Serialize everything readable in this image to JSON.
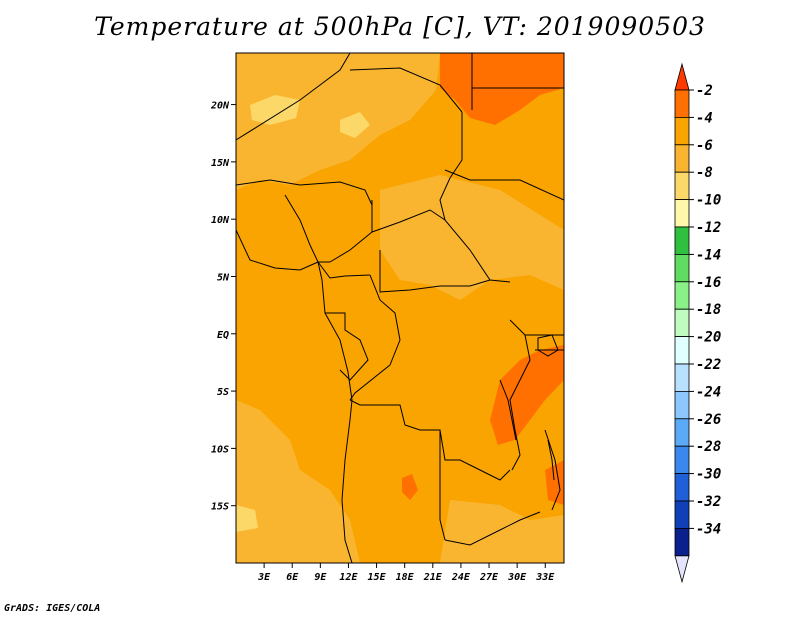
{
  "title": "Temperature at 500hPa [C], VT: 2019090503",
  "credit": "GrADS: IGES/COLA",
  "map": {
    "lon_range": [
      0,
      35
    ],
    "lat_range": [
      -20,
      24.5
    ],
    "lon_ticks": [
      {
        "value": 3,
        "label": "3E"
      },
      {
        "value": 6,
        "label": "6E"
      },
      {
        "value": 9,
        "label": "9E"
      },
      {
        "value": 12,
        "label": "12E"
      },
      {
        "value": 15,
        "label": "15E"
      },
      {
        "value": 18,
        "label": "18E"
      },
      {
        "value": 21,
        "label": "21E"
      },
      {
        "value": 24,
        "label": "24E"
      },
      {
        "value": 27,
        "label": "27E"
      },
      {
        "value": 30,
        "label": "30E"
      },
      {
        "value": 33,
        "label": "33E"
      }
    ],
    "lat_ticks": [
      {
        "value": 20,
        "label": "20N"
      },
      {
        "value": 15,
        "label": "15N"
      },
      {
        "value": 10,
        "label": "10N"
      },
      {
        "value": 5,
        "label": "5N"
      },
      {
        "value": 0,
        "label": "EQ"
      },
      {
        "value": -5,
        "label": "5S"
      },
      {
        "value": -10,
        "label": "10S"
      },
      {
        "value": -15,
        "label": "15S"
      }
    ],
    "background_color": "#F9A400"
  },
  "colorbar": {
    "labels": [
      "-2",
      "-4",
      "-6",
      "-8",
      "-10",
      "-12",
      "-14",
      "-16",
      "-18",
      "-20",
      "-22",
      "-24",
      "-26",
      "-28",
      "-30",
      "-32",
      "-34"
    ],
    "colors": [
      "#FF3A00",
      "#FF7000",
      "#F9A400",
      "#FAB530",
      "#FCD868",
      "#FFF8AA",
      "#2FC040",
      "#60DC60",
      "#8AF088",
      "#C0FCC0",
      "#E0FFFF",
      "#B8E0FF",
      "#8CC8FF",
      "#5AAAF8",
      "#3A88EE",
      "#1F5FD8",
      "#1040B8",
      "#0A208C",
      "#E4E4FC"
    ]
  }
}
